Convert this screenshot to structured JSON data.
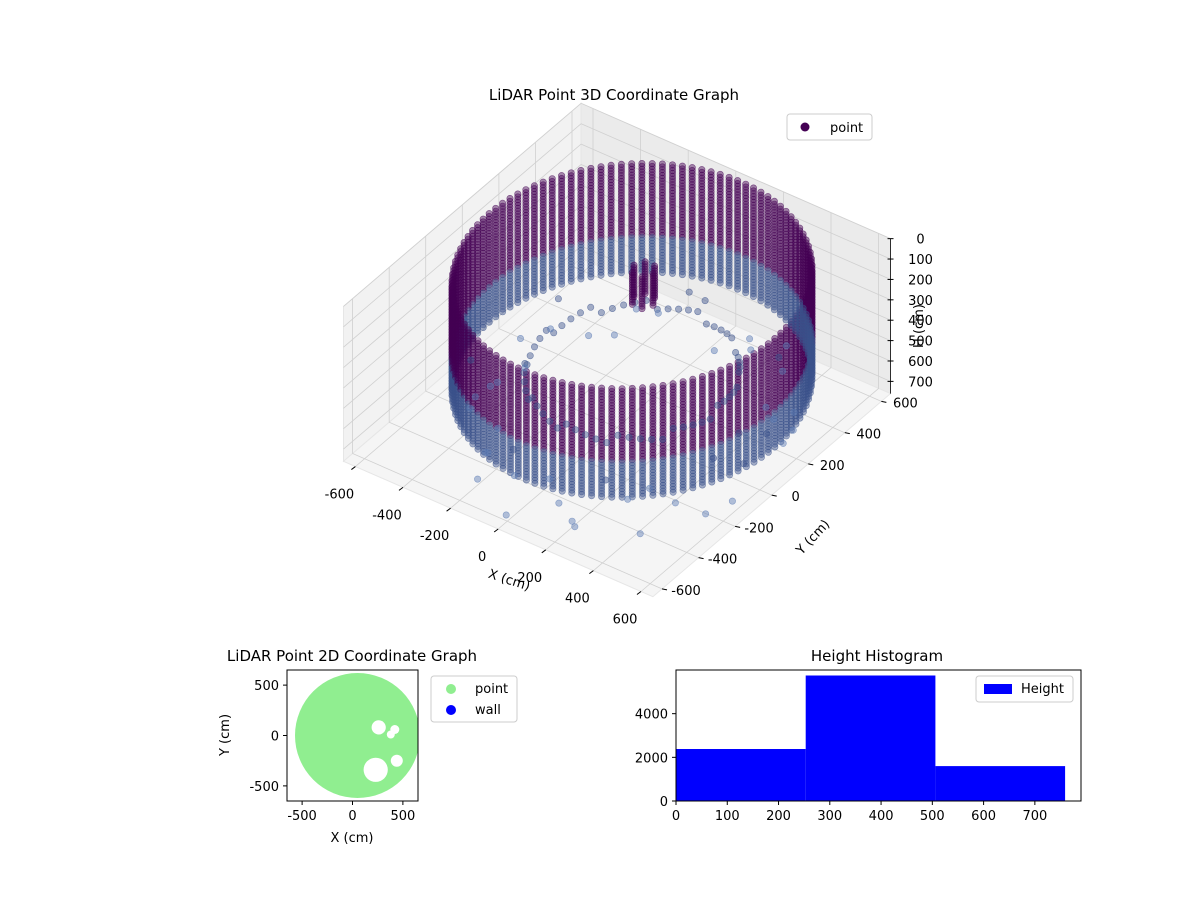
{
  "chart_data": [
    {
      "type": "scatter",
      "projection": "3d",
      "title": "LiDAR Point 3D Coordinate Graph",
      "xlabel": "X (cm)",
      "ylabel": "Y (cm)",
      "zlabel": "H (cm)",
      "xlim": [
        -650,
        650
      ],
      "ylim": [
        -650,
        650
      ],
      "zlim": [
        760,
        0
      ],
      "z_axis_inverted": true,
      "x_ticks": [
        -600,
        -400,
        -200,
        0,
        200,
        400,
        600
      ],
      "y_ticks": [
        -600,
        -400,
        -200,
        0,
        200,
        400,
        600
      ],
      "z_ticks": [
        0,
        100,
        200,
        300,
        400,
        500,
        600,
        700
      ],
      "grid": true,
      "legend": {
        "position": "top-right",
        "entries": [
          {
            "label": "point",
            "color": "#440154"
          }
        ]
      },
      "colormap": [
        "#440154",
        "#3b528b",
        "#5b7bb4",
        "#7aa0c8"
      ],
      "series": [
        {
          "name": "point",
          "description_shape": "cylindrical wall",
          "center": [
            40,
            30
          ],
          "radius": 600,
          "h_range": [
            20,
            560
          ],
          "bottom_scatter_h_range": [
            560,
            760
          ],
          "sample_points": [
            {
              "x": -480,
              "y": -150,
              "h": 740
            },
            {
              "x": -250,
              "y": -380,
              "h": 720
            },
            {
              "x": 180,
              "y": -480,
              "h": 760
            },
            {
              "x": 420,
              "y": -420,
              "h": 745
            },
            {
              "x": 600,
              "y": -150,
              "h": 700
            },
            {
              "x": 560,
              "y": 180,
              "h": 690
            },
            {
              "x": -20,
              "y": -580,
              "h": 755
            },
            {
              "x": 350,
              "y": 450,
              "h": 650
            }
          ],
          "top_object": {
            "x": 50,
            "y": 80,
            "h_range": [
              20,
              180
            ]
          }
        }
      ]
    },
    {
      "type": "scatter",
      "title": "LiDAR Point 2D Coordinate Graph",
      "xlabel": "X (cm)",
      "ylabel": "Y (cm)",
      "xlim": [
        -650,
        650
      ],
      "ylim": [
        -650,
        650
      ],
      "x_ticks": [
        -500,
        0,
        500
      ],
      "y_ticks": [
        -500,
        0,
        500
      ],
      "legend": {
        "position": "outside-right",
        "entries": [
          {
            "label": "point",
            "color": "#90ee90"
          },
          {
            "label": "wall",
            "color": "#0000ff"
          }
        ]
      },
      "series": [
        {
          "name": "point",
          "color": "#90ee90",
          "shape": "filled disc",
          "center": [
            50,
            0
          ],
          "radius": 620
        },
        {
          "name": "wall",
          "color": "#0000ff",
          "points": []
        }
      ]
    },
    {
      "type": "bar",
      "subtype": "histogram",
      "title": "Height Histogram",
      "xlabel": "",
      "ylabel": "",
      "xlim": [
        0,
        790
      ],
      "ylim": [
        0,
        6000
      ],
      "x_ticks": [
        0,
        100,
        200,
        300,
        400,
        500,
        600,
        700
      ],
      "y_ticks": [
        0,
        2000,
        4000
      ],
      "legend": {
        "position": "top-right",
        "entries": [
          {
            "label": "Height",
            "color": "#0000ff"
          }
        ]
      },
      "bins": [
        {
          "start": 0,
          "end": 253,
          "count": 2380
        },
        {
          "start": 253,
          "end": 506,
          "count": 5750
        },
        {
          "start": 506,
          "end": 759,
          "count": 1600
        }
      ],
      "color": "#0000ff"
    }
  ]
}
